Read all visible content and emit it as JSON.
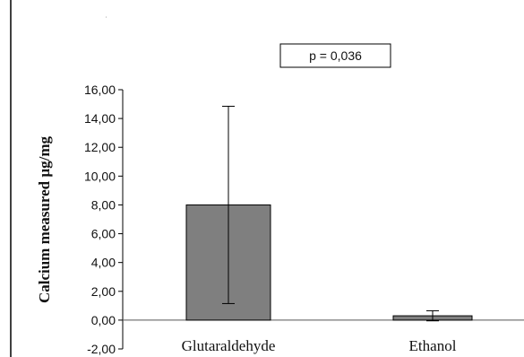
{
  "chart_data": {
    "type": "bar",
    "categories": [
      "Glutaraldehyde",
      "Ethanol"
    ],
    "values": [
      8.0,
      0.3
    ],
    "error": [
      6.85,
      0.35
    ],
    "ylabel": "Calcium measured µg/mg",
    "ylim": [
      -2,
      16
    ],
    "yticks": [
      -2,
      0,
      2,
      4,
      6,
      8,
      10,
      12,
      14,
      16
    ],
    "ytick_labels": [
      "-2,00",
      "0,00",
      "2,00",
      "4,00",
      "6,00",
      "8,00",
      "10,00",
      "12,00",
      "14,00",
      "16,00"
    ],
    "annotation": "p = 0,036",
    "bar_color": "#7f7f7f",
    "grid": false
  }
}
